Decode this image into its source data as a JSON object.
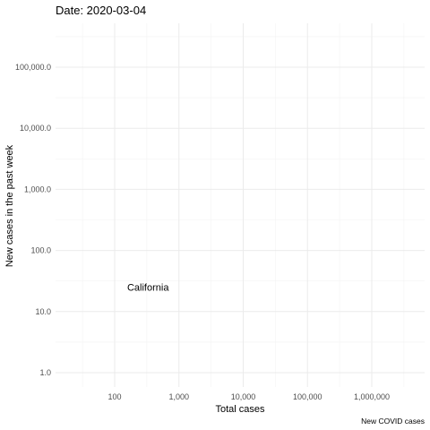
{
  "chart_data": {
    "type": "scatter",
    "title": "Date: 2020-03-04",
    "xlabel": "Total cases",
    "ylabel": "New cases in the past week",
    "caption": "New COVID cases",
    "x_scale": "log",
    "y_scale": "log",
    "xlim": [
      20,
      5000000
    ],
    "ylim": [
      0.6,
      600000
    ],
    "x_ticks": [
      {
        "value": 100,
        "label": "100"
      },
      {
        "value": 1000,
        "label": "1,000"
      },
      {
        "value": 10000,
        "label": "10,000"
      },
      {
        "value": 100000,
        "label": "100,000"
      },
      {
        "value": 1000000,
        "label": "1,000,000"
      }
    ],
    "y_ticks": [
      {
        "value": 1,
        "label": "1.0"
      },
      {
        "value": 10,
        "label": "10.0"
      },
      {
        "value": 100,
        "label": "100.0"
      },
      {
        "value": 1000,
        "label": "1,000.0"
      },
      {
        "value": 10000,
        "label": "10,000.0"
      },
      {
        "value": 100000,
        "label": "100,000.0"
      }
    ],
    "grid": true,
    "points": [
      {
        "label": "California",
        "x": 53,
        "y": 25
      }
    ]
  }
}
